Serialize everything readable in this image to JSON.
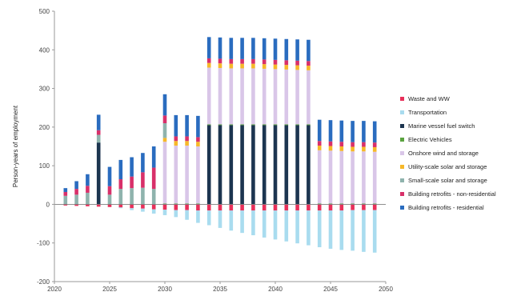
{
  "chart_data": {
    "type": "bar",
    "stacked": true,
    "title": "",
    "xlabel": "",
    "ylabel": "Person-years of employment",
    "ylim": [
      -200,
      500
    ],
    "yticks": [
      -200,
      -100,
      0,
      100,
      200,
      300,
      400,
      500
    ],
    "xlim": [
      2020,
      2050
    ],
    "xticks": [
      2020,
      2025,
      2030,
      2035,
      2040,
      2045,
      2050
    ],
    "grid": false,
    "legend_position": "right",
    "categories": [
      2021,
      2022,
      2023,
      2024,
      2025,
      2026,
      2027,
      2028,
      2029,
      2030,
      2031,
      2032,
      2033,
      2034,
      2035,
      2036,
      2037,
      2038,
      2039,
      2040,
      2041,
      2042,
      2043,
      2044,
      2045,
      2046,
      2047,
      2048,
      2049
    ],
    "series": [
      {
        "name": "Waste and WW",
        "color": "#e8305a",
        "values": [
          -3,
          -4,
          -5,
          -6,
          -7,
          -8,
          -10,
          -11,
          -13,
          -14,
          -15,
          -15,
          -16,
          -16,
          -16,
          -16,
          -16,
          -16,
          -16,
          -16,
          -16,
          -16,
          -16,
          -16,
          -16,
          -16,
          -15,
          -15,
          -15
        ]
      },
      {
        "name": "Transportation",
        "color": "#a9dcef",
        "values": [
          0,
          0,
          0,
          0,
          0,
          -2,
          -5,
          -8,
          -11,
          -14,
          -18,
          -25,
          -32,
          -38,
          -45,
          -52,
          -58,
          -64,
          -70,
          -75,
          -80,
          -85,
          -90,
          -95,
          -99,
          -102,
          -105,
          -108,
          -110
        ]
      },
      {
        "name": "Marine vessel fuel switch",
        "color": "#1c3550",
        "values": [
          0,
          0,
          0,
          160,
          0,
          0,
          0,
          0,
          0,
          0,
          0,
          0,
          0,
          205,
          205,
          205,
          205,
          205,
          205,
          205,
          205,
          205,
          205,
          0,
          0,
          0,
          0,
          0,
          0
        ]
      },
      {
        "name": "Electric Vehicles",
        "color": "#5aa33f",
        "values": [
          0,
          0,
          0,
          0,
          0,
          0,
          0,
          0,
          0,
          2,
          2,
          2,
          2,
          2,
          2,
          2,
          2,
          2,
          2,
          2,
          2,
          2,
          2,
          2,
          2,
          2,
          2,
          2,
          2
        ]
      },
      {
        "name": "Onshore wind and storage",
        "color": "#d9c6e8",
        "values": [
          0,
          0,
          0,
          0,
          0,
          0,
          0,
          0,
          0,
          160,
          150,
          150,
          148,
          147,
          146,
          145,
          145,
          145,
          144,
          143,
          142,
          141,
          140,
          138,
          137,
          136,
          135,
          135,
          134
        ]
      },
      {
        "name": "Utility-scale solar and storage",
        "color": "#f6b829",
        "values": [
          0,
          0,
          0,
          0,
          0,
          0,
          0,
          0,
          0,
          10,
          12,
          12,
          12,
          12,
          12,
          12,
          12,
          12,
          12,
          12,
          12,
          12,
          12,
          12,
          12,
          12,
          12,
          12,
          12
        ]
      },
      {
        "name": "Small-scale solar and storage",
        "color": "#8fb3ad",
        "values": [
          22,
          25,
          30,
          20,
          25,
          40,
          42,
          43,
          40,
          38,
          0,
          0,
          0,
          0,
          0,
          0,
          0,
          0,
          0,
          0,
          0,
          0,
          0,
          0,
          0,
          0,
          0,
          0,
          0
        ]
      },
      {
        "name": "Building retrofits - non-residential",
        "color": "#d8306a",
        "values": [
          10,
          15,
          18,
          12,
          22,
          25,
          30,
          40,
          55,
          20,
          12,
          12,
          12,
          12,
          12,
          12,
          12,
          12,
          12,
          12,
          12,
          12,
          12,
          12,
          12,
          12,
          12,
          12,
          12
        ]
      },
      {
        "name": "Building retrofits - residential",
        "color": "#2a6cbf",
        "values": [
          10,
          20,
          30,
          40,
          50,
          50,
          50,
          50,
          55,
          55,
          55,
          55,
          55,
          55,
          55,
          55,
          55,
          55,
          55,
          55,
          55,
          55,
          55,
          55,
          55,
          55,
          55,
          55,
          55
        ]
      }
    ],
    "legend_order": [
      0,
      1,
      2,
      3,
      4,
      5,
      6,
      7,
      8
    ],
    "legend_labels": [
      "Waste and WW",
      "Transportation",
      "Marine vessel fuel switch",
      "Electric Vehicles",
      "Onshore wind and storage",
      "Utility-scale solar and storage",
      "Small-scale solar and storage",
      "Building retrofits - non-residential",
      "Building retrofits - residential"
    ]
  }
}
